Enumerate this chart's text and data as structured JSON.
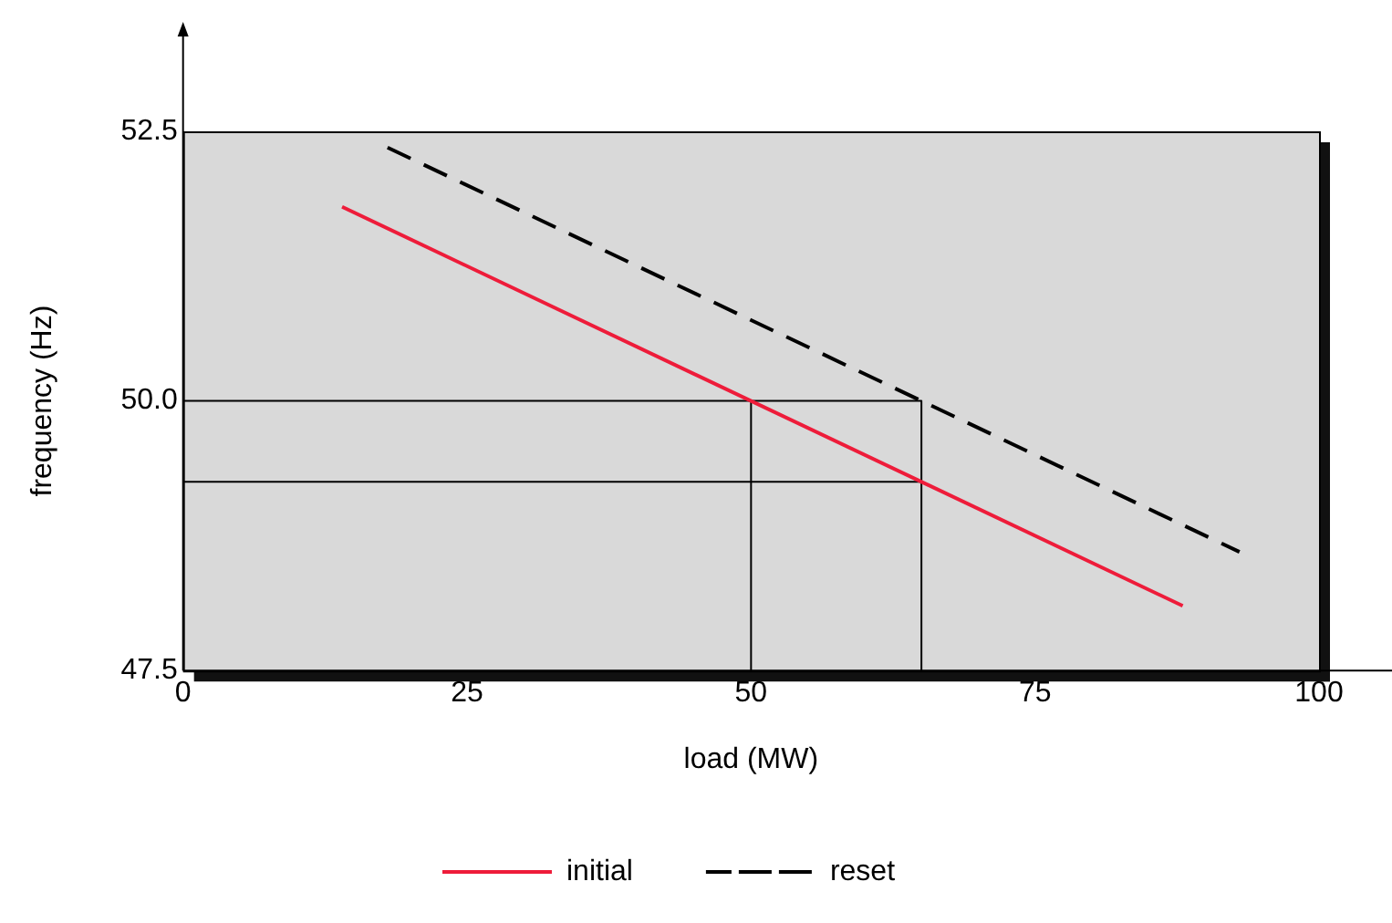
{
  "chart_data": {
    "type": "line",
    "xlabel": "load (MW)",
    "ylabel": "frequency (Hz)",
    "xlim": [
      0,
      100
    ],
    "xticks": [
      0,
      25,
      50,
      75,
      100
    ],
    "ylim": [
      47.5,
      52.5
    ],
    "yticks": [
      47.5,
      {
        "value": 50,
        "label": "50.0"
      },
      52.5
    ],
    "grid": false,
    "legend": "bottom",
    "marker": "none",
    "series": [
      {
        "name": "initial",
        "color": "#ee1c3a",
        "x": [
          14,
          88
        ],
        "values": [
          51.8,
          48.1
        ],
        "line_style": "solid"
      },
      {
        "name": "reset",
        "color": "#000000",
        "x": [
          18,
          93
        ],
        "values": [
          52.35,
          48.6
        ],
        "line_style": "dashed"
      },
      {
        "color": "#000000",
        "x": [
          0,
          65,
          65
        ],
        "values": [
          50,
          50,
          47.5
        ],
        "line_style": "solid"
      },
      {
        "color": "#000000",
        "x": [
          50,
          50
        ],
        "values": [
          50,
          47.5
        ],
        "line_style": "solid"
      },
      {
        "color": "#000000",
        "x": [
          0,
          65
        ],
        "values": [
          49.25,
          49.25
        ],
        "line_style": "solid"
      }
    ]
  }
}
